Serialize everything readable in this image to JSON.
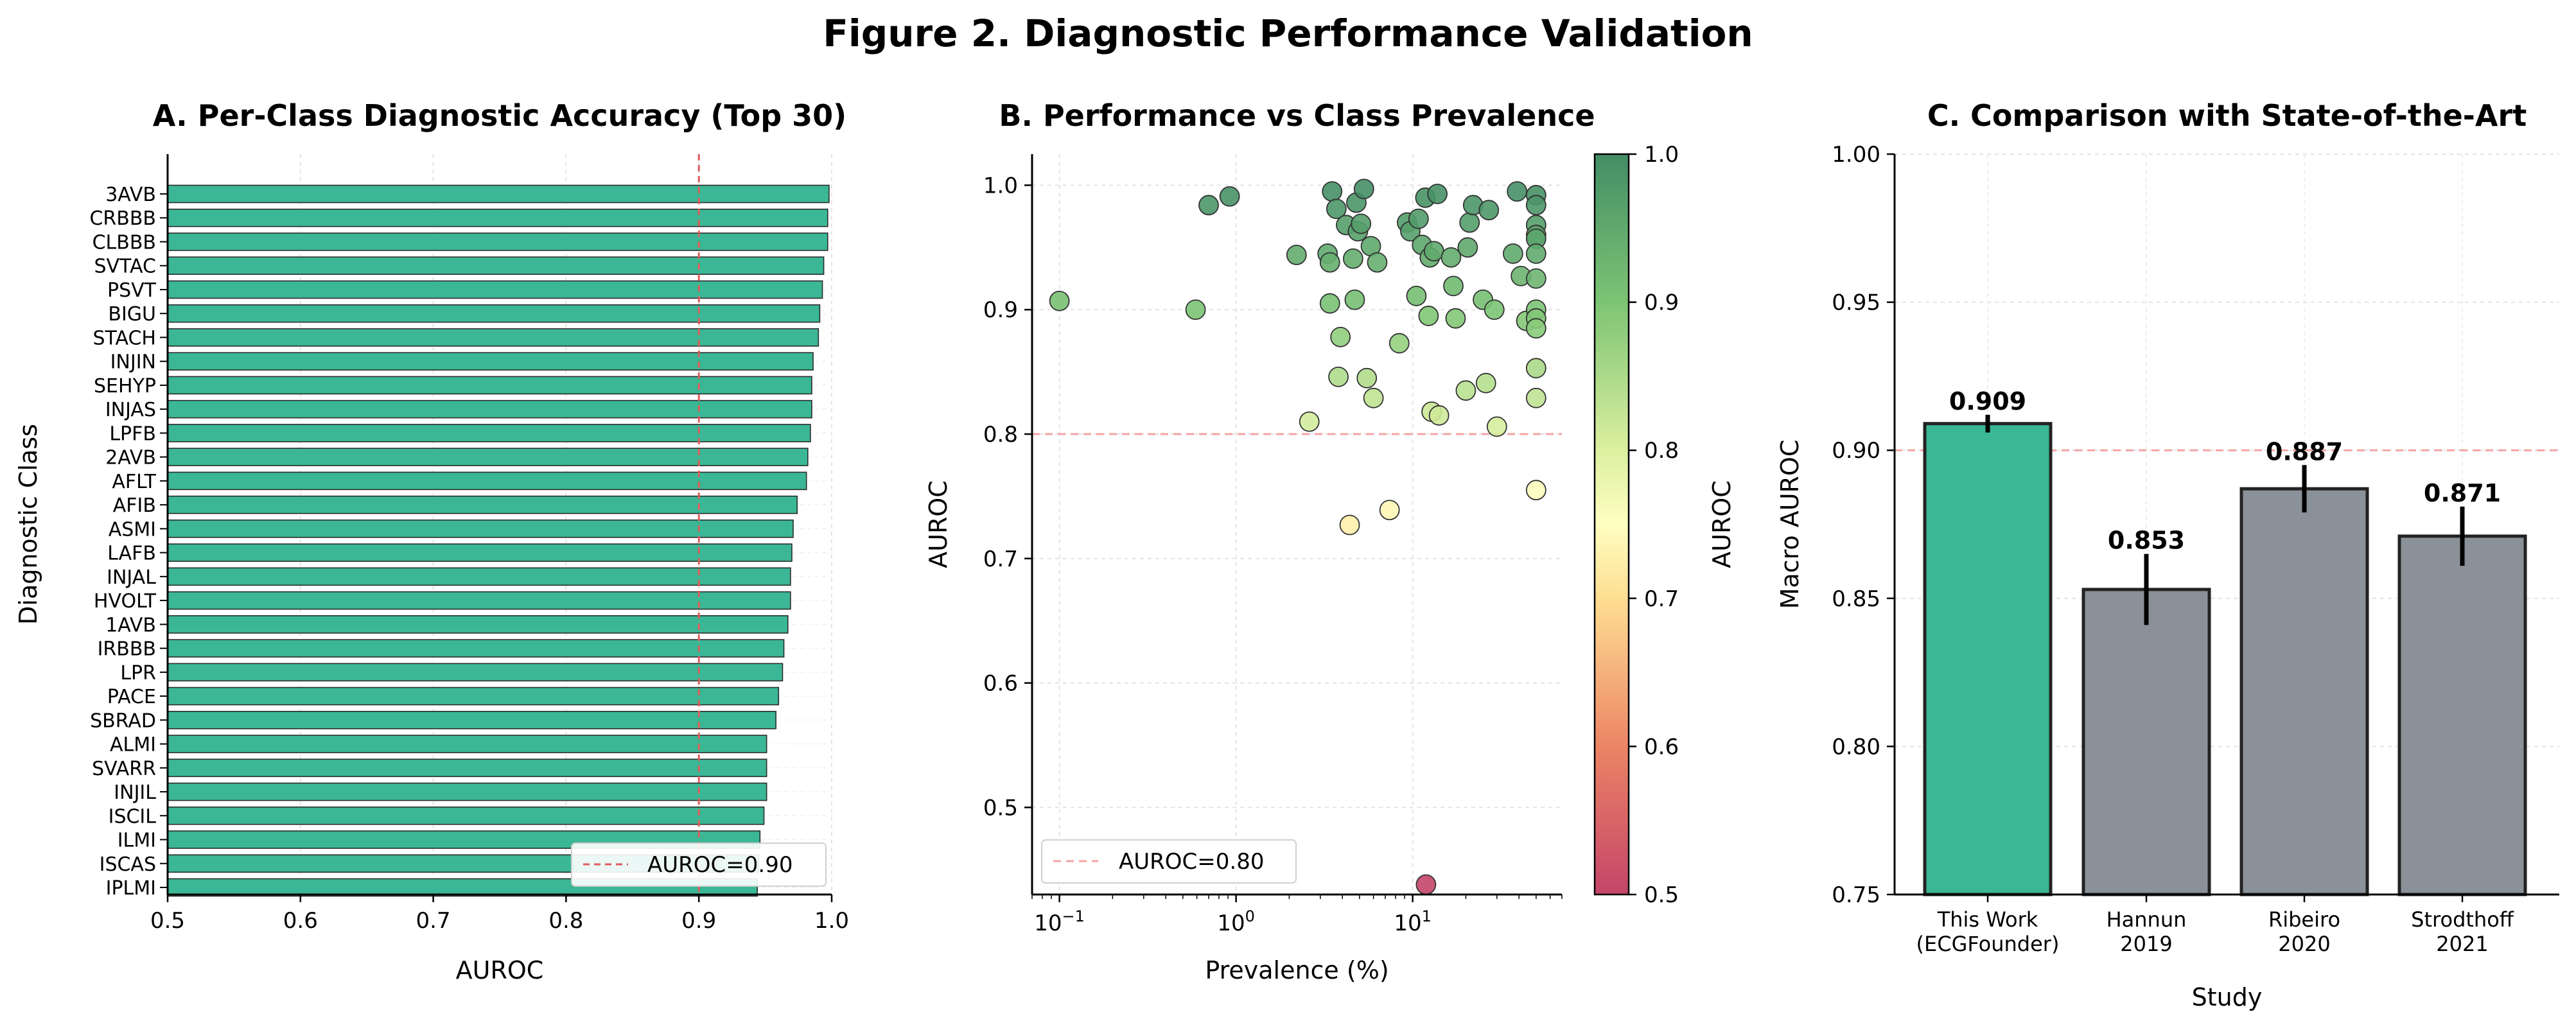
{
  "figure_title": "Figure 2. Diagnostic Performance Validation",
  "colors": {
    "bar_green": "#3bb795",
    "bar_gray": "#8a9198",
    "ref_red": "#e05c5c",
    "ref_pink": "#f4a3a3"
  },
  "chart_data": [
    {
      "id": "A",
      "type": "bar",
      "orientation": "horizontal",
      "title": "A. Per-Class Diagnostic Accuracy (Top 30)",
      "xlabel": "AUROC",
      "ylabel": "Diagnostic Class",
      "xlim": [
        0.5,
        1.0
      ],
      "xticks": [
        "0.5",
        "0.6",
        "0.7",
        "0.8",
        "0.9",
        "1.0"
      ],
      "categories": [
        "3AVB",
        "CRBBB",
        "CLBBB",
        "SVTAC",
        "PSVT",
        "BIGU",
        "STACH",
        "INJIN",
        "SEHYP",
        "INJAS",
        "LPFB",
        "2AVB",
        "AFLT",
        "AFIB",
        "ASMI",
        "LAFB",
        "INJAL",
        "HVOLT",
        "1AVB",
        "IRBBB",
        "LPR",
        "PACE",
        "SBRAD",
        "ALMI",
        "SVARR",
        "INJIL",
        "ISCIL",
        "ILMI",
        "ISCAS",
        "IPLMI"
      ],
      "values": [
        0.998,
        0.997,
        0.997,
        0.994,
        0.993,
        0.991,
        0.99,
        0.986,
        0.985,
        0.985,
        0.984,
        0.982,
        0.981,
        0.974,
        0.971,
        0.97,
        0.969,
        0.969,
        0.967,
        0.964,
        0.963,
        0.96,
        0.958,
        0.951,
        0.951,
        0.951,
        0.949,
        0.946,
        0.945,
        0.944
      ],
      "reference_line": {
        "value": 0.9,
        "label": "AUROC=0.90"
      },
      "legend_position": "lower right",
      "grid": true
    },
    {
      "id": "B",
      "type": "scatter",
      "title": "B. Performance vs Class Prevalence",
      "xlabel": "Prevalence (%)",
      "ylabel": "AUROC",
      "xscale": "log",
      "xlim": [
        0.07,
        70
      ],
      "ylim": [
        0.43,
        1.025
      ],
      "yticks": [
        "0.5",
        "0.6",
        "0.7",
        "0.8",
        "0.9",
        "1.0"
      ],
      "xticks": [
        {
          "base": "10",
          "exp": "−1"
        },
        {
          "base": "10",
          "exp": "0"
        },
        {
          "base": "10",
          "exp": "1"
        }
      ],
      "colorbar": {
        "label": "AUROC",
        "range": [
          0.5,
          1.0
        ],
        "ticks": [
          "0.5",
          "0.6",
          "0.7",
          "0.8",
          "0.9",
          "1.0"
        ]
      },
      "reference_line": {
        "value": 0.8,
        "label": "AUROC=0.80"
      },
      "legend_position": "lower left",
      "grid": true,
      "points": [
        {
          "x": 0.1,
          "y": 0.907
        },
        {
          "x": 0.59,
          "y": 0.9
        },
        {
          "x": 0.7,
          "y": 0.984
        },
        {
          "x": 0.92,
          "y": 0.991
        },
        {
          "x": 2.2,
          "y": 0.944
        },
        {
          "x": 2.6,
          "y": 0.81
        },
        {
          "x": 3.3,
          "y": 0.945
        },
        {
          "x": 3.4,
          "y": 0.938
        },
        {
          "x": 3.4,
          "y": 0.905
        },
        {
          "x": 3.5,
          "y": 0.995
        },
        {
          "x": 3.7,
          "y": 0.981
        },
        {
          "x": 3.8,
          "y": 0.846
        },
        {
          "x": 3.9,
          "y": 0.878
        },
        {
          "x": 4.2,
          "y": 0.968
        },
        {
          "x": 4.4,
          "y": 0.727
        },
        {
          "x": 4.6,
          "y": 0.941
        },
        {
          "x": 4.7,
          "y": 0.908
        },
        {
          "x": 4.8,
          "y": 0.986
        },
        {
          "x": 4.9,
          "y": 0.963
        },
        {
          "x": 5.1,
          "y": 0.969
        },
        {
          "x": 5.3,
          "y": 0.997
        },
        {
          "x": 5.5,
          "y": 0.845
        },
        {
          "x": 5.8,
          "y": 0.951
        },
        {
          "x": 6.0,
          "y": 0.829
        },
        {
          "x": 6.3,
          "y": 0.938
        },
        {
          "x": 7.4,
          "y": 0.739
        },
        {
          "x": 8.4,
          "y": 0.873
        },
        {
          "x": 9.3,
          "y": 0.97
        },
        {
          "x": 9.7,
          "y": 0.963
        },
        {
          "x": 10.5,
          "y": 0.911
        },
        {
          "x": 10.8,
          "y": 0.973
        },
        {
          "x": 11.3,
          "y": 0.952
        },
        {
          "x": 11.8,
          "y": 0.99
        },
        {
          "x": 11.9,
          "y": 0.438
        },
        {
          "x": 12.3,
          "y": 0.895
        },
        {
          "x": 12.5,
          "y": 0.942
        },
        {
          "x": 12.8,
          "y": 0.818
        },
        {
          "x": 13.2,
          "y": 0.947
        },
        {
          "x": 13.8,
          "y": 0.993
        },
        {
          "x": 14.1,
          "y": 0.815
        },
        {
          "x": 16.5,
          "y": 0.942
        },
        {
          "x": 17.0,
          "y": 0.919
        },
        {
          "x": 17.5,
          "y": 0.893
        },
        {
          "x": 20.0,
          "y": 0.835
        },
        {
          "x": 20.5,
          "y": 0.95
        },
        {
          "x": 21.0,
          "y": 0.97
        },
        {
          "x": 22.0,
          "y": 0.984
        },
        {
          "x": 25.0,
          "y": 0.908
        },
        {
          "x": 26.0,
          "y": 0.841
        },
        {
          "x": 27.0,
          "y": 0.98
        },
        {
          "x": 29.0,
          "y": 0.9
        },
        {
          "x": 30.0,
          "y": 0.806
        },
        {
          "x": 37.0,
          "y": 0.945
        },
        {
          "x": 39.0,
          "y": 0.995
        },
        {
          "x": 41.0,
          "y": 0.927
        },
        {
          "x": 44.0,
          "y": 0.891
        },
        {
          "x": 50.0,
          "y": 0.992
        },
        {
          "x": 50.0,
          "y": 0.984
        },
        {
          "x": 50.0,
          "y": 0.968
        },
        {
          "x": 50.0,
          "y": 0.96
        },
        {
          "x": 50.0,
          "y": 0.957
        },
        {
          "x": 50.0,
          "y": 0.945
        },
        {
          "x": 50.0,
          "y": 0.925
        },
        {
          "x": 50.0,
          "y": 0.9
        },
        {
          "x": 50.0,
          "y": 0.893
        },
        {
          "x": 50.0,
          "y": 0.885
        },
        {
          "x": 50.0,
          "y": 0.853
        },
        {
          "x": 50.0,
          "y": 0.829
        },
        {
          "x": 50.0,
          "y": 0.755
        }
      ]
    },
    {
      "id": "C",
      "type": "bar",
      "orientation": "vertical",
      "title": "C. Comparison with State-of-the-Art",
      "xlabel": "Study",
      "ylabel": "Macro AUROC",
      "ylim": [
        0.75,
        1.0
      ],
      "yticks": [
        "0.75",
        "0.80",
        "0.85",
        "0.90",
        "0.95",
        "1.00"
      ],
      "categories": [
        {
          "line1": "This Work",
          "line2": "(ECGFounder)"
        },
        {
          "line1": "Hannun",
          "line2": "2019"
        },
        {
          "line1": "Ribeiro",
          "line2": "2020"
        },
        {
          "line1": "Strodthoff",
          "line2": "2021"
        }
      ],
      "values": [
        0.909,
        0.853,
        0.887,
        0.871
      ],
      "value_labels": [
        "0.909",
        "0.853",
        "0.887",
        "0.871"
      ],
      "error": [
        0.003,
        0.012,
        0.008,
        0.01
      ],
      "highlight_index": 0,
      "reference_line": {
        "value": 0.9
      },
      "grid": true
    }
  ]
}
